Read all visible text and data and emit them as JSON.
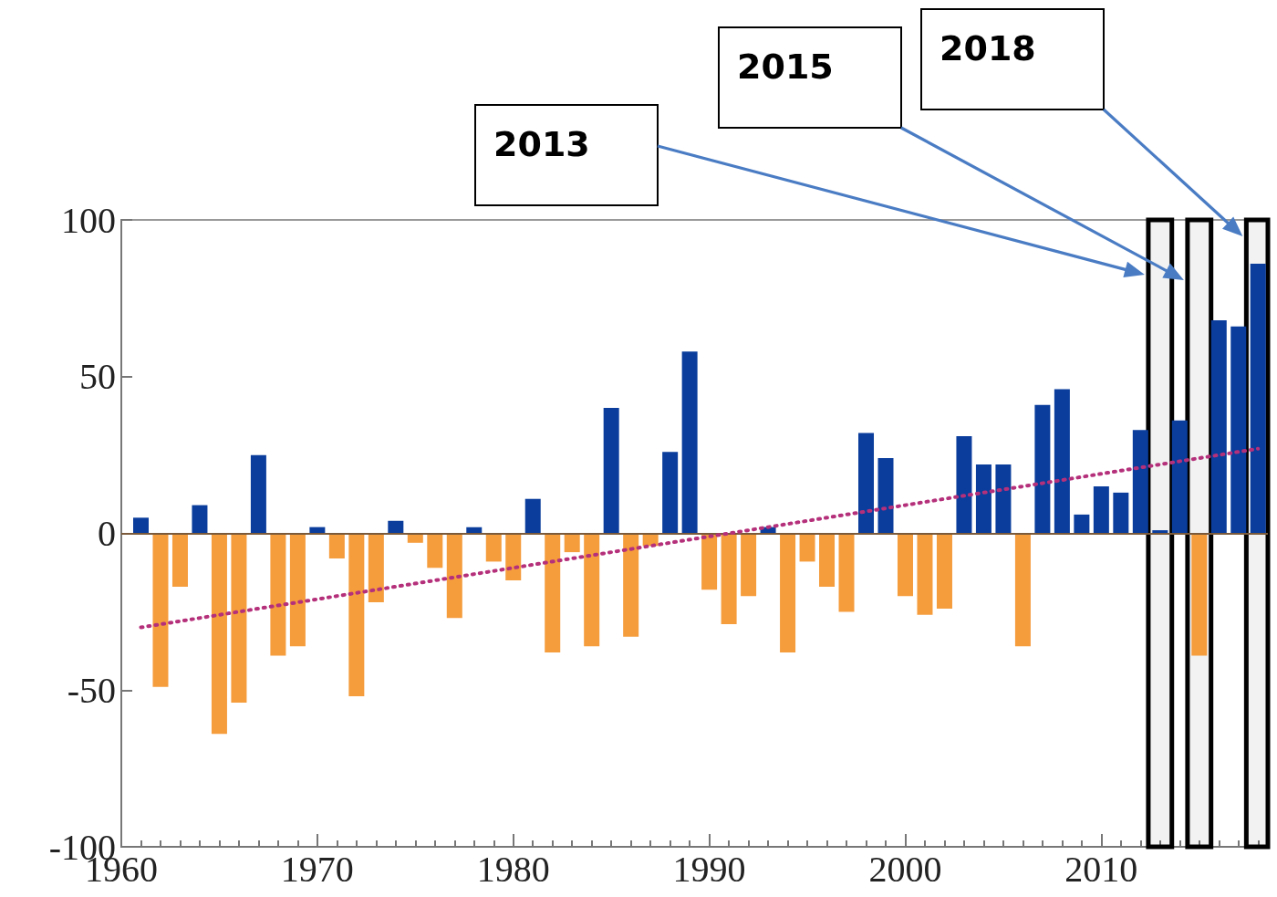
{
  "chart_data": {
    "type": "bar",
    "xlim": [
      1960,
      2018.5
    ],
    "xticks": [
      1960,
      1970,
      1980,
      1990,
      2000,
      2010
    ],
    "ylim": [
      -100,
      100
    ],
    "yticks": [
      -100,
      -50,
      0,
      50,
      100
    ],
    "marker": "none",
    "series": [
      {
        "x": [
          1961,
          1962,
          1963,
          1964,
          1965,
          1966,
          1967,
          1968,
          1969,
          1970,
          1971,
          1972,
          1973,
          1974,
          1975,
          1976,
          1977,
          1978,
          1979,
          1980,
          1981,
          1982,
          1983,
          1984,
          1985,
          1986,
          1987,
          1988,
          1989,
          1990,
          1991,
          1992,
          1993,
          1994,
          1995,
          1996,
          1997,
          1998,
          1999,
          2000,
          2001,
          2002,
          2003,
          2004,
          2005,
          2006,
          2007,
          2008,
          2009,
          2010,
          2011,
          2012,
          2013,
          2014,
          2015,
          2016,
          2017,
          2018
        ],
        "values": [
          5,
          -49,
          -17,
          9,
          -64,
          -54,
          25,
          -39,
          -36,
          2,
          -8,
          -52,
          -22,
          4,
          -3,
          -11,
          -27,
          2,
          -9,
          -15,
          11,
          -38,
          -6,
          -36,
          40,
          -33,
          -4,
          26,
          58,
          -18,
          -29,
          -20,
          2,
          -38,
          -9,
          -17,
          -25,
          32,
          24,
          -20,
          -26,
          -24,
          31,
          22,
          22,
          -36,
          41,
          46,
          6,
          15,
          13,
          33,
          1,
          36,
          -39,
          68,
          66,
          86
        ],
        "colors": [
          "#0a3d9c",
          "#f59c3c",
          "#f59c3c",
          "#0a3d9c",
          "#f59c3c",
          "#f59c3c",
          "#0a3d9c",
          "#f59c3c",
          "#f59c3c",
          "#0a3d9c",
          "#f59c3c",
          "#f59c3c",
          "#f59c3c",
          "#0a3d9c",
          "#f59c3c",
          "#f59c3c",
          "#f59c3c",
          "#0a3d9c",
          "#f59c3c",
          "#f59c3c",
          "#0a3d9c",
          "#f59c3c",
          "#f59c3c",
          "#f59c3c",
          "#0a3d9c",
          "#f59c3c",
          "#f59c3c",
          "#0a3d9c",
          "#0a3d9c",
          "#f59c3c",
          "#f59c3c",
          "#f59c3c",
          "#0a3d9c",
          "#f59c3c",
          "#f59c3c",
          "#f59c3c",
          "#f59c3c",
          "#0a3d9c",
          "#0a3d9c",
          "#f59c3c",
          "#f59c3c",
          "#f59c3c",
          "#0a3d9c",
          "#0a3d9c",
          "#0a3d9c",
          "#f59c3c",
          "#0a3d9c",
          "#0a3d9c",
          "#0a3d9c",
          "#0a3d9c",
          "#0a3d9c",
          "#0a3d9c",
          "#0a3d9c",
          "#0a3d9c",
          "#f59c3c",
          "#0a3d9c",
          "#0a3d9c",
          "#0a3d9c"
        ]
      },
      {
        "type": "line",
        "x": [
          1961,
          2018
        ],
        "values": [
          -30,
          27
        ],
        "color": "#b5307a",
        "line_style": "dotted"
      }
    ],
    "ref_lines": [
      {
        "axis": "y",
        "value": 0,
        "color": "#7a5a3a"
      }
    ],
    "bands": [
      {
        "axis": "x",
        "from": 2012.4,
        "to": 2013.6,
        "color": "#000000"
      },
      {
        "axis": "x",
        "from": 2014.4,
        "to": 2015.6,
        "color": "#000000"
      },
      {
        "axis": "x",
        "from": 2017.4,
        "to": 2018.5,
        "color": "#000000"
      }
    ],
    "annotations": [
      "2013",
      "2015",
      "2018"
    ]
  }
}
